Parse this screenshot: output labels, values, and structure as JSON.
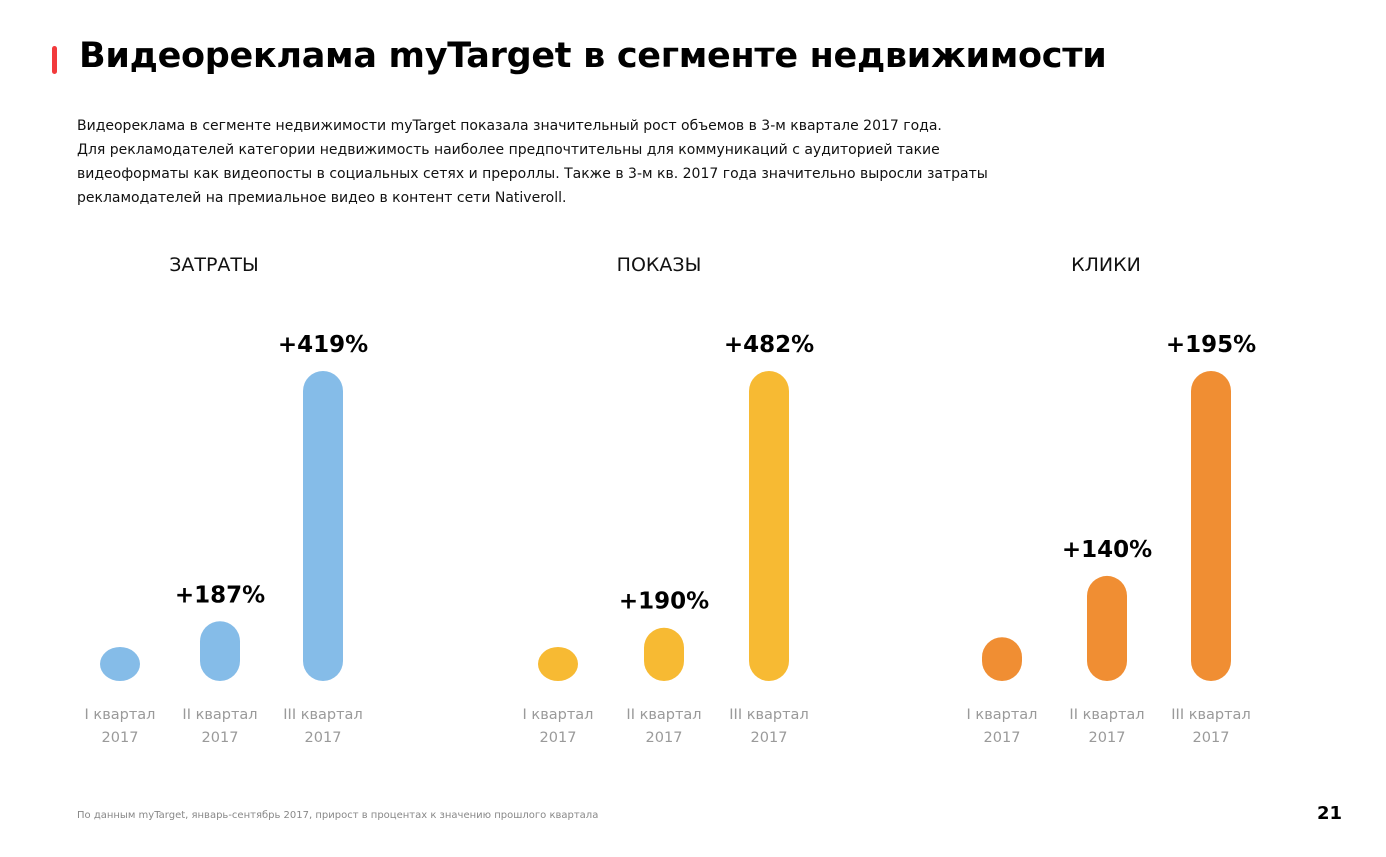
{
  "header": {
    "title": "Видеореклама myTarget в сегменте недвижимости",
    "accent_color": "#F23A3C"
  },
  "intro": {
    "lines": [
      "Видеореклама в сегменте недвижимости myTarget показала значительный рост объемов в 3-м квартале 2017 года.",
      "Для рекламодателей категории недвижимость наиболее предпочтительны для коммуникаций с аудиторией такие",
      "видеоформаты как видеопосты в социальных сетях и прероллы. Также в 3-м кв. 2017 года значительно выросли затраты",
      "рекламодателей на премиальное видео в контент сети Nativeroll."
    ]
  },
  "footer": {
    "note": "По данным myTarget, январь-сентябрь 2017, прирост в процентах к значению прошлого квартала",
    "page_number": "21"
  },
  "chart_data": [
    {
      "type": "bar",
      "title": "ЗАТРАТЫ",
      "color": "#85BCE8",
      "categories": [
        [
          "I квартал",
          "2017"
        ],
        [
          "II квартал",
          "2017"
        ],
        [
          "III квартал",
          "2017"
        ]
      ],
      "values": [
        1,
        2.87,
        14.9
      ],
      "labels": [
        "",
        "+187%",
        "+419%"
      ]
    },
    {
      "type": "bar",
      "title": "ПОКАЗЫ",
      "color": "#F7BA33",
      "categories": [
        [
          "I квартал",
          "2017"
        ],
        [
          "II квартал",
          "2017"
        ],
        [
          "III квартал",
          "2017"
        ]
      ],
      "values": [
        1,
        2.9,
        16.88
      ],
      "labels": [
        "",
        "+190%",
        "+482%"
      ]
    },
    {
      "type": "bar",
      "title": "КЛИКИ",
      "color": "#F08E33",
      "categories": [
        [
          "I квартал",
          "2017"
        ],
        [
          "II квартал",
          "2017"
        ],
        [
          "III квартал",
          "2017"
        ]
      ],
      "values": [
        1,
        2.4,
        7.08
      ],
      "labels": [
        "",
        "+140%",
        "+195%"
      ]
    }
  ]
}
